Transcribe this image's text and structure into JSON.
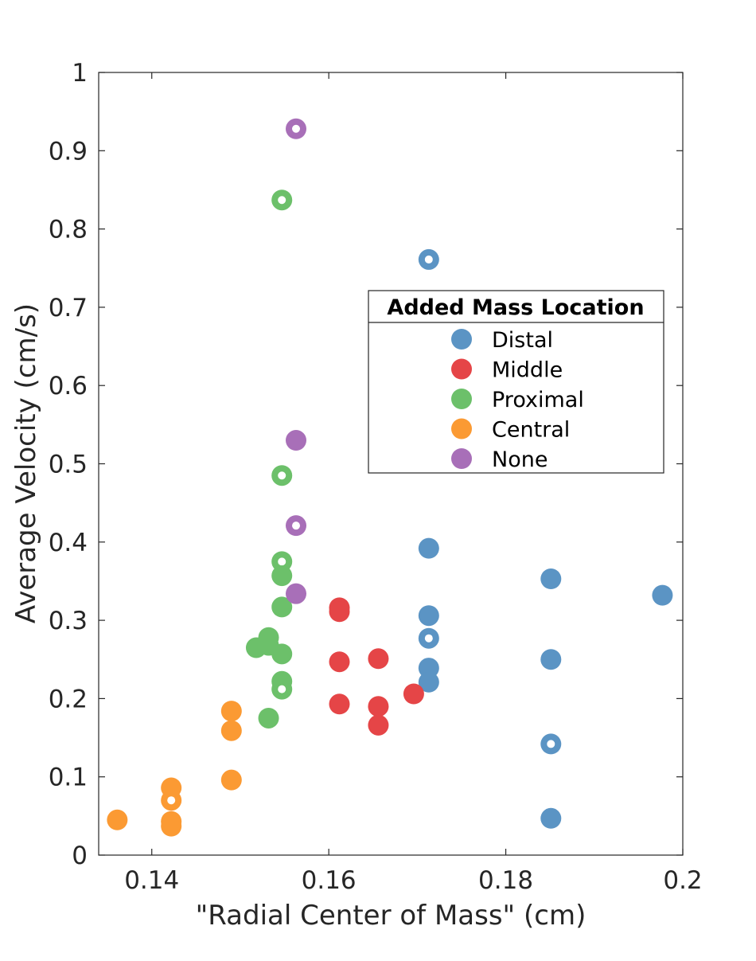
{
  "chart_data": {
    "type": "scatter",
    "title": "",
    "xlabel": "\"Radial Center of Mass\" (cm)",
    "ylabel": "Average Velocity (cm/s)",
    "xlim": [
      0.134,
      0.2
    ],
    "ylim": [
      0,
      1
    ],
    "xticks": [
      0.14,
      0.16,
      0.18,
      0.2
    ],
    "xtick_labels": [
      "0.14",
      "0.16",
      "0.18",
      "0.2"
    ],
    "yticks": [
      0,
      0.1,
      0.2,
      0.3,
      0.4,
      0.5,
      0.6,
      0.7,
      0.8,
      0.9,
      1
    ],
    "ytick_labels": [
      "0",
      "0.1",
      "0.2",
      "0.3",
      "0.4",
      "0.5",
      "0.6",
      "0.7",
      "0.8",
      "0.9",
      "1"
    ],
    "grid": false,
    "legend": {
      "title": "Added Mass Location",
      "placement": "right-middle"
    },
    "marker_note": "hollow markers have a white center",
    "series": [
      {
        "name": "Distal",
        "color": "#5b94c4",
        "points": [
          {
            "x": 0.1713,
            "y": 0.761,
            "hollow": true
          },
          {
            "x": 0.1713,
            "y": 0.392,
            "hollow": false
          },
          {
            "x": 0.1713,
            "y": 0.306,
            "hollow": false
          },
          {
            "x": 0.1713,
            "y": 0.277,
            "hollow": true
          },
          {
            "x": 0.1713,
            "y": 0.239,
            "hollow": false
          },
          {
            "x": 0.1713,
            "y": 0.221,
            "hollow": false
          },
          {
            "x": 0.1851,
            "y": 0.353,
            "hollow": false
          },
          {
            "x": 0.1851,
            "y": 0.25,
            "hollow": false
          },
          {
            "x": 0.1851,
            "y": 0.142,
            "hollow": true
          },
          {
            "x": 0.1851,
            "y": 0.047,
            "hollow": false
          },
          {
            "x": 0.1977,
            "y": 0.332,
            "hollow": false
          }
        ]
      },
      {
        "name": "Middle",
        "color": "#e54547",
        "points": [
          {
            "x": 0.1612,
            "y": 0.316,
            "hollow": false
          },
          {
            "x": 0.1612,
            "y": 0.311,
            "hollow": false
          },
          {
            "x": 0.1612,
            "y": 0.247,
            "hollow": false
          },
          {
            "x": 0.1612,
            "y": 0.193,
            "hollow": false
          },
          {
            "x": 0.1656,
            "y": 0.251,
            "hollow": false
          },
          {
            "x": 0.1656,
            "y": 0.19,
            "hollow": false
          },
          {
            "x": 0.1656,
            "y": 0.166,
            "hollow": false
          },
          {
            "x": 0.1696,
            "y": 0.206,
            "hollow": false
          }
        ]
      },
      {
        "name": "Proximal",
        "color": "#6cc06a",
        "points": [
          {
            "x": 0.1547,
            "y": 0.837,
            "hollow": true
          },
          {
            "x": 0.1547,
            "y": 0.485,
            "hollow": true
          },
          {
            "x": 0.1547,
            "y": 0.375,
            "hollow": true
          },
          {
            "x": 0.1547,
            "y": 0.357,
            "hollow": false
          },
          {
            "x": 0.1547,
            "y": 0.317,
            "hollow": false
          },
          {
            "x": 0.1547,
            "y": 0.257,
            "hollow": false
          },
          {
            "x": 0.1547,
            "y": 0.222,
            "hollow": false
          },
          {
            "x": 0.1547,
            "y": 0.212,
            "hollow": true
          },
          {
            "x": 0.1532,
            "y": 0.278,
            "hollow": false
          },
          {
            "x": 0.1532,
            "y": 0.268,
            "hollow": false
          },
          {
            "x": 0.1518,
            "y": 0.265,
            "hollow": false
          },
          {
            "x": 0.1532,
            "y": 0.175,
            "hollow": false
          }
        ]
      },
      {
        "name": "Central",
        "color": "#fb9a33",
        "points": [
          {
            "x": 0.1361,
            "y": 0.045,
            "hollow": false
          },
          {
            "x": 0.1422,
            "y": 0.086,
            "hollow": false
          },
          {
            "x": 0.1422,
            "y": 0.07,
            "hollow": true
          },
          {
            "x": 0.1422,
            "y": 0.043,
            "hollow": false
          },
          {
            "x": 0.1422,
            "y": 0.037,
            "hollow": false
          },
          {
            "x": 0.149,
            "y": 0.184,
            "hollow": false
          },
          {
            "x": 0.149,
            "y": 0.159,
            "hollow": false
          },
          {
            "x": 0.149,
            "y": 0.096,
            "hollow": false
          }
        ]
      },
      {
        "name": "None",
        "color": "#a86fb8",
        "points": [
          {
            "x": 0.1563,
            "y": 0.928,
            "hollow": true
          },
          {
            "x": 0.1563,
            "y": 0.53,
            "hollow": false
          },
          {
            "x": 0.1563,
            "y": 0.421,
            "hollow": true
          },
          {
            "x": 0.1563,
            "y": 0.334,
            "hollow": false
          }
        ]
      }
    ]
  }
}
